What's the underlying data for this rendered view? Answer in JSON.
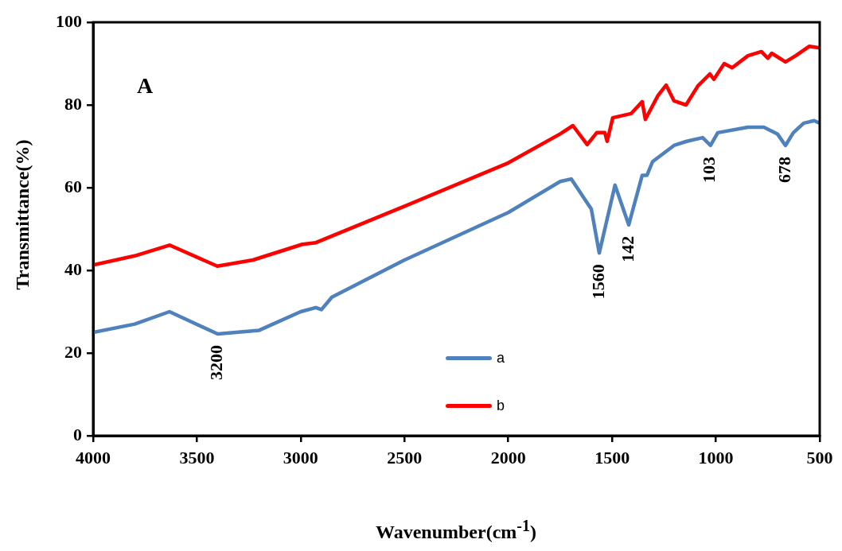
{
  "chart_data": {
    "type": "line",
    "xlabel": "Wavenumber(cm$^{-1}$)",
    "ylabel": "Transmittance(%)",
    "xlim": [
      4000,
      500
    ],
    "xticks": [
      4000,
      3500,
      3000,
      2500,
      2000,
      1500,
      1000,
      500
    ],
    "ylim": [
      0,
      100
    ],
    "yticks": [
      0,
      20,
      40,
      60,
      80,
      100
    ],
    "grid": false,
    "legend": "bottom",
    "marker": "none",
    "line_style": "solid",
    "series": [
      {
        "name": "a",
        "color": "#4f81bd",
        "x": [
          4000,
          3800,
          3632,
          3400,
          3200,
          3000,
          2927,
          2900,
          2850,
          2500,
          2000,
          1750,
          1697,
          1600,
          1562,
          1486,
          1420,
          1355,
          1332,
          1305,
          1202,
          1141,
          1064,
          1026,
          991,
          846,
          769,
          704,
          665,
          627,
          577,
          527,
          500
        ],
        "values": [
          25,
          27,
          30,
          24.6,
          25.5,
          30,
          31,
          30.5,
          33.5,
          42.5,
          54,
          61.5,
          62.1,
          54.8,
          44.2,
          60.6,
          51,
          63,
          63,
          66.3,
          70.2,
          71.2,
          72.1,
          70.2,
          73.3,
          74.6,
          74.6,
          73,
          70.2,
          73.3,
          75.6,
          76.2,
          75.6
        ]
      },
      {
        "name": "b",
        "color": "#ff0000",
        "x": [
          4000,
          3800,
          3632,
          3402,
          3230,
          2992,
          2927,
          2850,
          2500,
          2000,
          1750,
          1689,
          1620,
          1574,
          1535,
          1524,
          1497,
          1409,
          1355,
          1340,
          1279,
          1240,
          1202,
          1144,
          1087,
          1029,
          1010,
          960,
          922,
          846,
          781,
          750,
          731,
          665,
          616,
          550,
          500
        ],
        "values": [
          41.3,
          43.5,
          46.1,
          41,
          42.5,
          46.3,
          46.7,
          48.3,
          55.5,
          66,
          73,
          75,
          70.4,
          73.3,
          73.3,
          71.2,
          76.9,
          77.9,
          80.8,
          76.5,
          82.3,
          84.8,
          81,
          80,
          84.6,
          87.5,
          86.2,
          90,
          89,
          91.9,
          92.9,
          91.3,
          92.5,
          90.4,
          91.9,
          94.2,
          93.8
        ]
      }
    ],
    "annotations": [
      "A",
      {
        "text": "3200",
        "x": 3400,
        "y": 24.6
      },
      {
        "text": "1560",
        "x": 1562,
        "y": 44.2
      },
      {
        "text": "142",
        "x": 1420,
        "y": 51
      },
      {
        "text": "103",
        "x": 1026,
        "y": 70.2
      },
      {
        "text": "678",
        "x": 665,
        "y": 70.2
      }
    ]
  }
}
